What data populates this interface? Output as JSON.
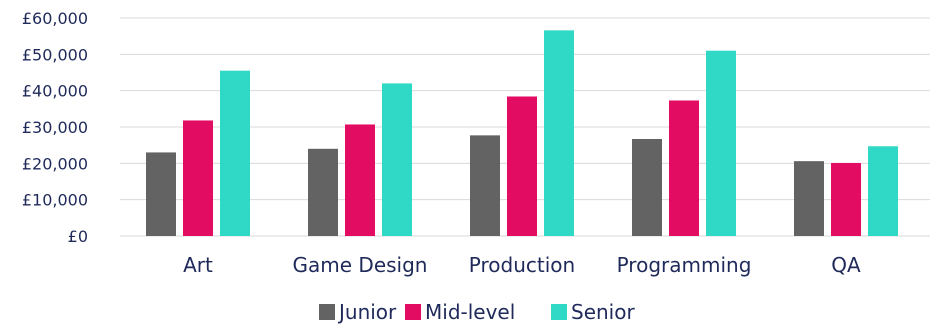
{
  "chart_data": {
    "type": "bar",
    "title": "",
    "xlabel": "",
    "ylabel": "",
    "categories": [
      "Art",
      "Game Design",
      "Production",
      "Programming",
      "QA"
    ],
    "series": [
      {
        "name": "Junior",
        "color": "#636363",
        "values": [
          23000,
          24000,
          27700,
          26700,
          20600
        ]
      },
      {
        "name": "Mid-level",
        "color": "#e20d62",
        "values": [
          31800,
          30700,
          38400,
          37300,
          20100
        ]
      },
      {
        "name": "Senior",
        "color": "#30d9c5",
        "values": [
          45500,
          42000,
          56600,
          51000,
          24700
        ]
      }
    ],
    "ylim": [
      0,
      60000
    ],
    "yticks": [
      {
        "value": 0,
        "label": "£0"
      },
      {
        "value": 10000,
        "label": "£10,000"
      },
      {
        "value": 20000,
        "label": "£20,000"
      },
      {
        "value": 30000,
        "label": "£30,000"
      },
      {
        "value": 40000,
        "label": "£40,000"
      },
      {
        "value": 50000,
        "label": "£50,000"
      },
      {
        "value": 60000,
        "label": "£60,000"
      }
    ],
    "grid": true,
    "legend": "bottom-center",
    "colors": {
      "grid": "#d9d9d9",
      "text": "#1f2a5a"
    }
  }
}
